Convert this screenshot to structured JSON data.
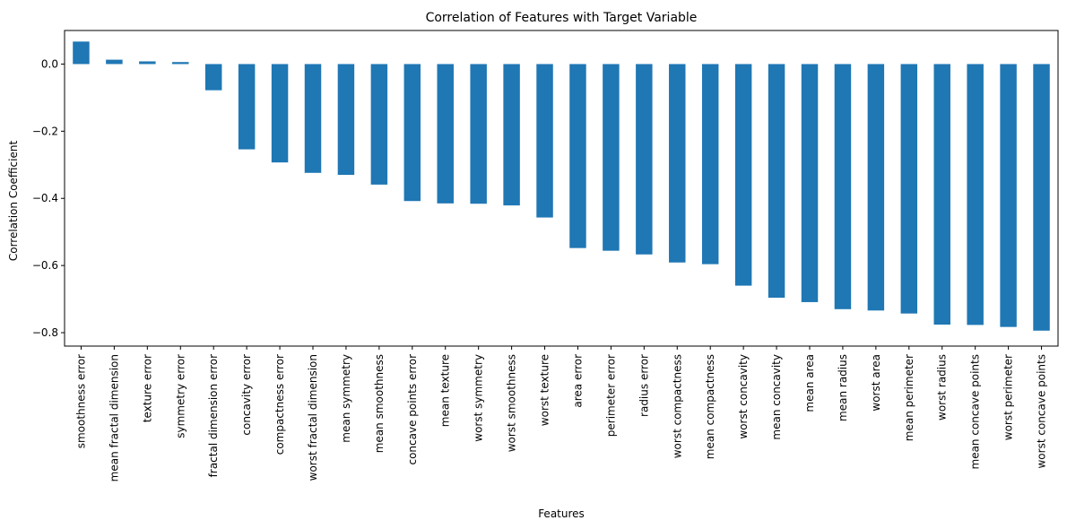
{
  "chart_data": {
    "type": "bar",
    "title": "Correlation of Features with Target Variable",
    "xlabel": "Features",
    "ylabel": "Correlation Coefficient",
    "ylim": [
      -0.84,
      0.1
    ],
    "yticks": [
      0.0,
      -0.2,
      -0.4,
      -0.6,
      -0.8
    ],
    "ytick_labels": [
      "0.0",
      "−0.2",
      "−0.4",
      "−0.6",
      "−0.8"
    ],
    "grid": false,
    "legend": "none",
    "bar_color": "#1f77b4",
    "categories": [
      "smoothness error",
      "mean fractal dimension",
      "texture error",
      "symmetry error",
      "fractal dimension error",
      "concavity error",
      "compactness error",
      "worst fractal dimension",
      "mean symmetry",
      "mean smoothness",
      "concave points error",
      "mean texture",
      "worst symmetry",
      "worst smoothness",
      "worst texture",
      "area error",
      "perimeter error",
      "radius error",
      "worst compactness",
      "mean compactness",
      "worst concavity",
      "mean concavity",
      "mean area",
      "mean radius",
      "worst area",
      "mean perimeter",
      "worst radius",
      "mean concave points",
      "worst perimeter",
      "worst concave points"
    ],
    "values": [
      0.067,
      0.013,
      0.008,
      0.006,
      -0.078,
      -0.254,
      -0.293,
      -0.324,
      -0.33,
      -0.359,
      -0.408,
      -0.415,
      -0.416,
      -0.421,
      -0.457,
      -0.548,
      -0.556,
      -0.567,
      -0.591,
      -0.596,
      -0.66,
      -0.696,
      -0.709,
      -0.73,
      -0.734,
      -0.743,
      -0.776,
      -0.777,
      -0.783,
      -0.794
    ]
  }
}
